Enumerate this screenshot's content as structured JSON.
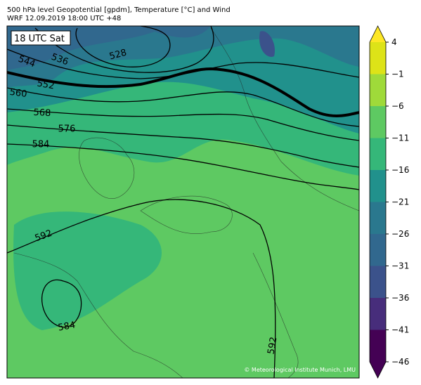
{
  "header": {
    "title": "500 hPa level Geopotential [gpdm], Temperature [°C] and Wind",
    "subtitle": "WRF 12.09.2019 18:00 UTC +48"
  },
  "map": {
    "time_label": "18 UTC Sat",
    "credit": "© Meteorological Institute Munich, LMU",
    "contour_labels": [
      544,
      536,
      528,
      552,
      560,
      568,
      576,
      584,
      592,
      584,
      592
    ]
  },
  "colorbar": {
    "ticks": [
      4,
      {
        "value": -1,
        "label": "−1"
      },
      {
        "value": -6,
        "label": "−6"
      },
      {
        "value": -11,
        "label": "−11"
      },
      {
        "value": -16,
        "label": "−16"
      },
      {
        "value": -21,
        "label": "−21"
      },
      {
        "value": -26,
        "label": "−26"
      },
      {
        "value": -31,
        "label": "−31"
      },
      {
        "value": -36,
        "label": "−36"
      },
      {
        "value": -41,
        "label": "−41"
      },
      {
        "value": -46,
        "label": "−46"
      }
    ],
    "colors": [
      "#fde725",
      "#dde318",
      "#9fda3a",
      "#5ec962",
      "#35b779",
      "#21918c",
      "#2a788e",
      "#31688e",
      "#3b528b",
      "#472d7b",
      "#440154",
      "#440154"
    ]
  }
}
